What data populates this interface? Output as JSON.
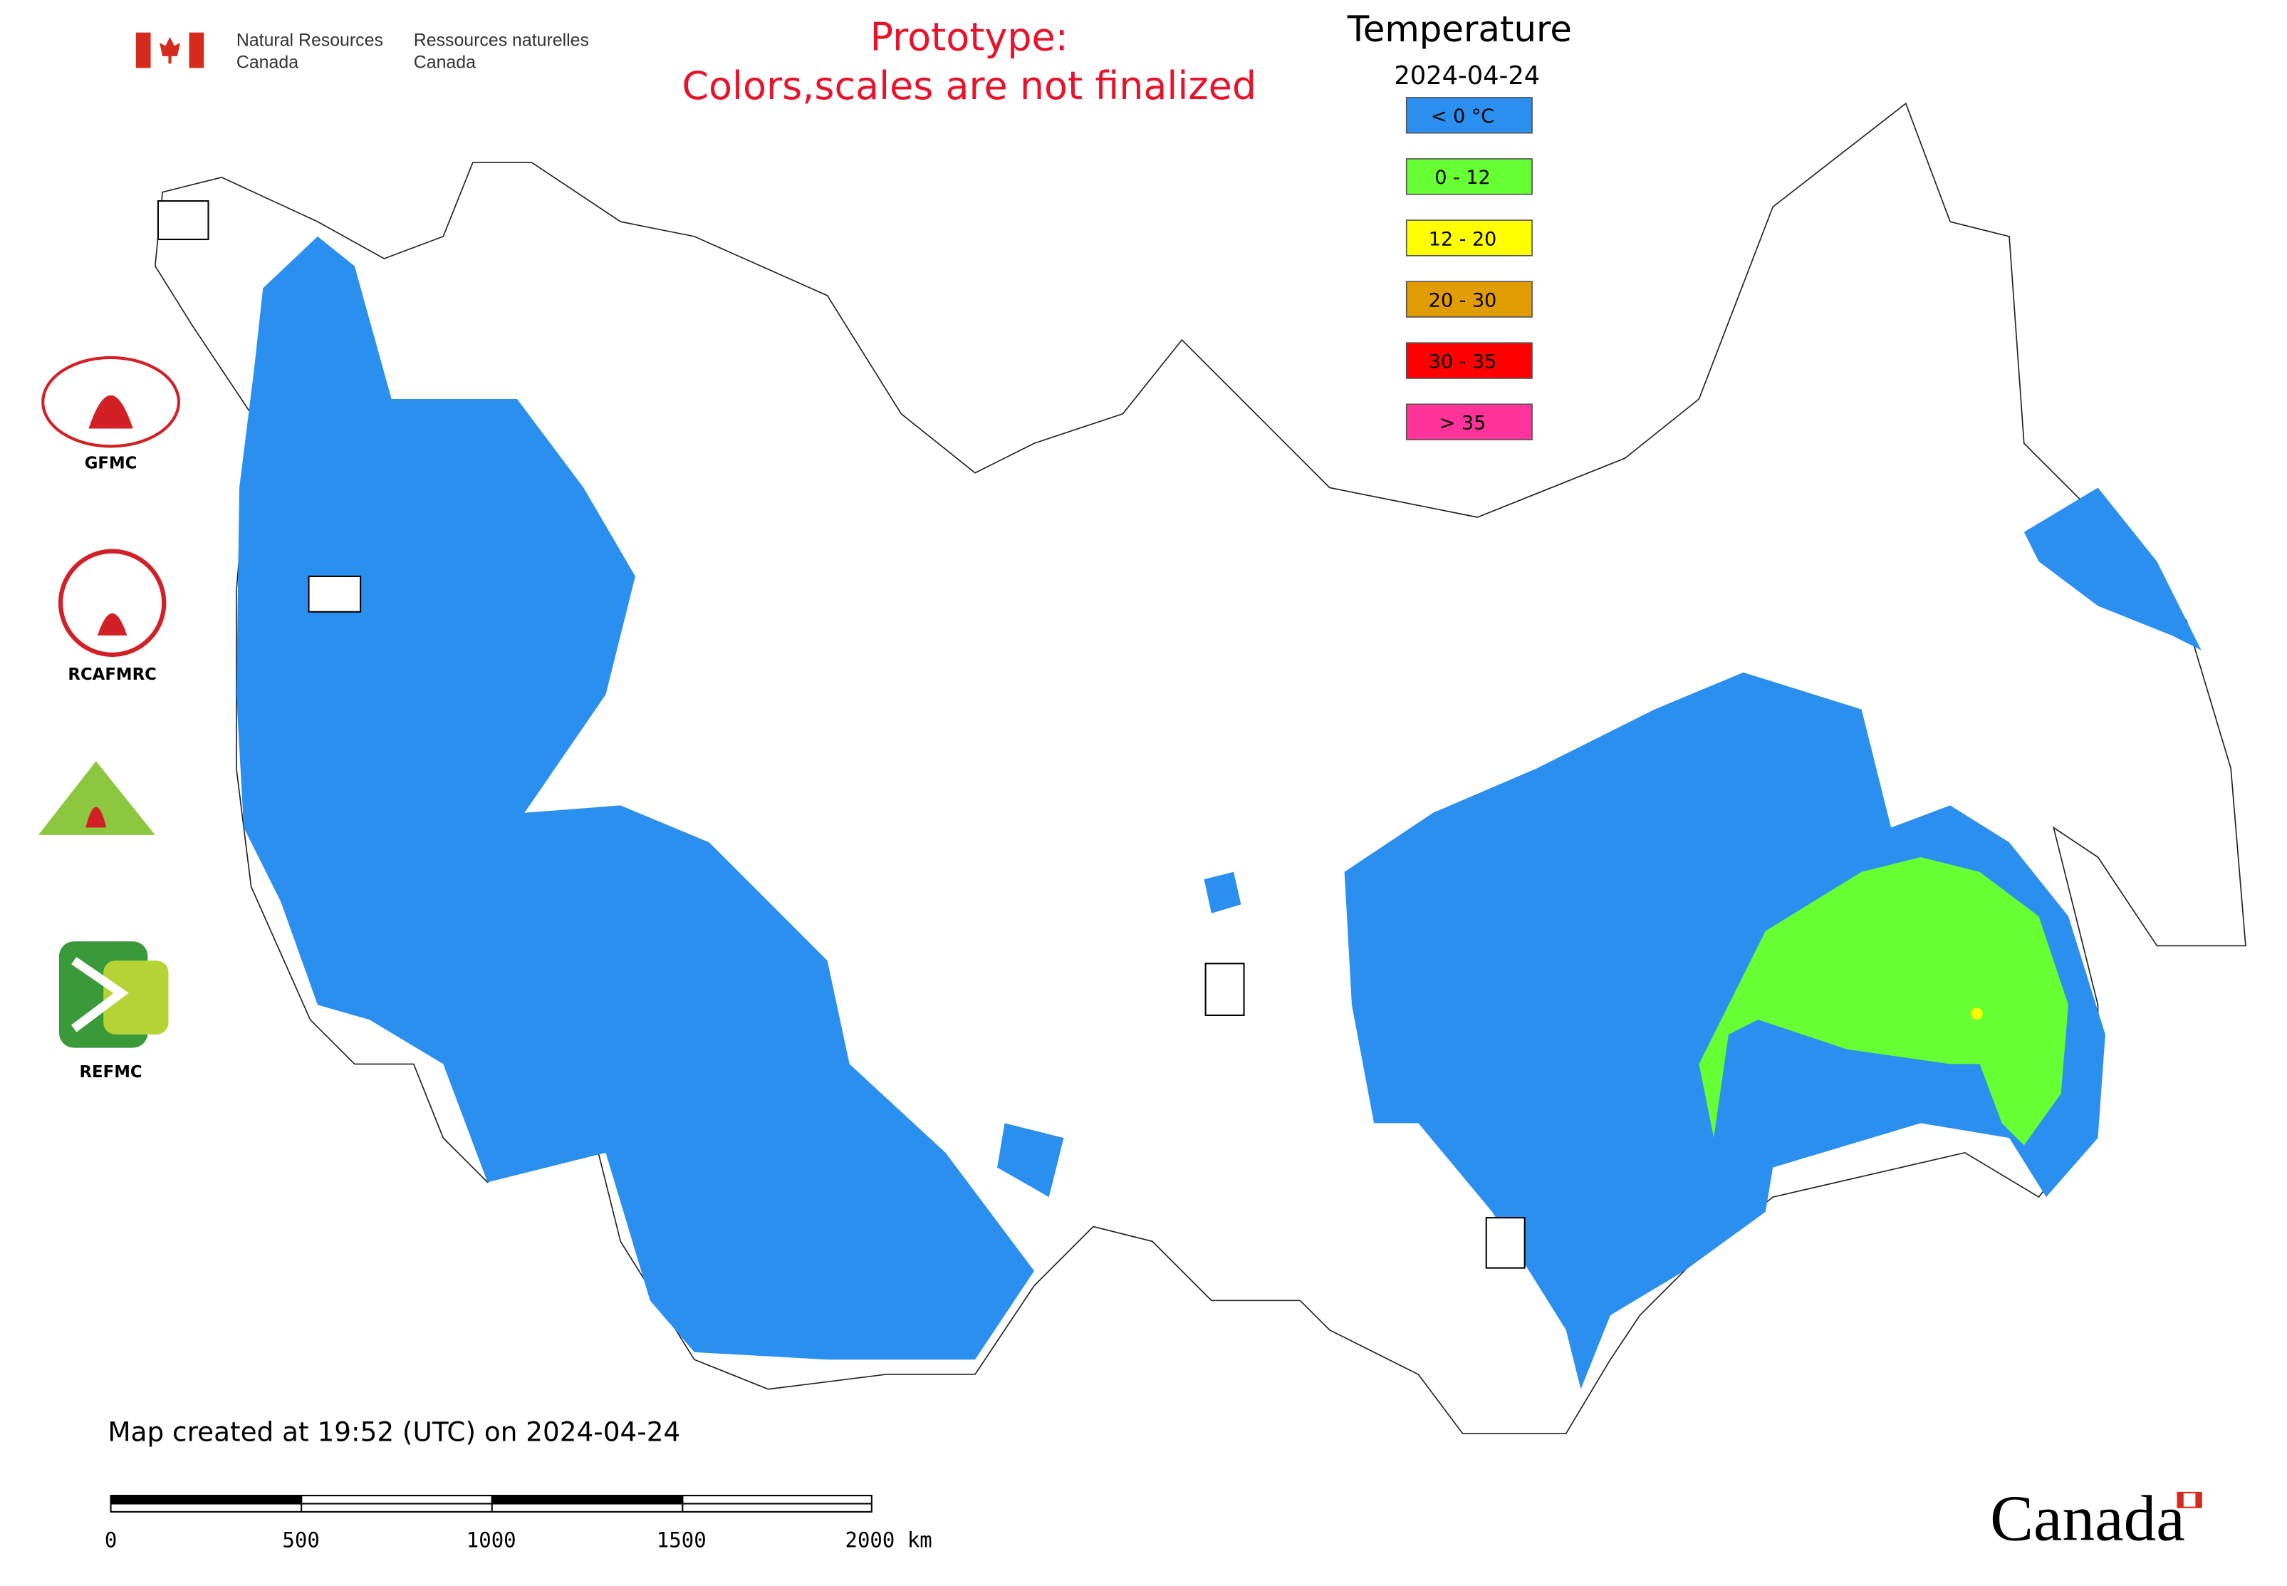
{
  "header": {
    "department_en": [
      "Natural Resources",
      "Canada"
    ],
    "department_fr": [
      "Ressources naturelles",
      "Canada"
    ]
  },
  "notice": [
    "Prototype:",
    "Colors,scales are not finalized"
  ],
  "legend": {
    "title": "Temperature",
    "date": "2024-04-24",
    "items": [
      {
        "label": "< 0 °C",
        "color": "#2b8ff0"
      },
      {
        "label": "0 - 12",
        "color": "#66ff33"
      },
      {
        "label": "12 - 20",
        "color": "#ffff00"
      },
      {
        "label": "20 - 30",
        "color": "#e09c00"
      },
      {
        "label": "30 - 35",
        "color": "#ff0000"
      },
      {
        "label": "> 35",
        "color": "#ff3399"
      }
    ]
  },
  "partners": [
    "GFMC",
    "RCAFMRC",
    "REFMC"
  ],
  "footer": {
    "created": "Map created at 19:52 (UTC) on 2024-04-24",
    "scale_labels": [
      "0",
      "500",
      "1000",
      "1500",
      "2000 km"
    ],
    "wordmark": "Canada"
  }
}
